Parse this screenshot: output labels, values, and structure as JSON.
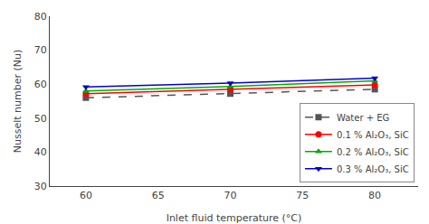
{
  "chart_data": {
    "type": "line",
    "x_label": "Inlet fluid temperature (°C)",
    "y_label": "Nusselt number (Nu)",
    "x": [
      60,
      70,
      80
    ],
    "series": [
      {
        "name": "Water + EG",
        "values": [
          56.0,
          57.2,
          58.5
        ],
        "color": "#555555",
        "marker": "square",
        "line_style": "dashed"
      },
      {
        "name": "0.1 % Al₂O₃, SiC",
        "values": [
          57.2,
          58.5,
          59.8
        ],
        "color": "#ff0000",
        "marker": "circle",
        "line_style": "solid"
      },
      {
        "name": "0.2 % Al₂O₃, SiC",
        "values": [
          58.0,
          59.3,
          61.0
        ],
        "color": "#00aa00",
        "marker": "triangle-up",
        "line_style": "solid"
      },
      {
        "name": "0.3 % Al₂O₃, SiC",
        "values": [
          59.2,
          60.3,
          61.8
        ],
        "color": "#0000cc",
        "marker": "triangle-down",
        "line_style": "solid"
      }
    ],
    "xlim": [
      57.5,
      83
    ],
    "ylim": [
      30,
      80
    ],
    "xticks": [
      60,
      65,
      70,
      75,
      80
    ],
    "yticks": [
      30,
      40,
      50,
      60,
      70,
      80
    ],
    "grid": false,
    "legend": "lower right"
  }
}
